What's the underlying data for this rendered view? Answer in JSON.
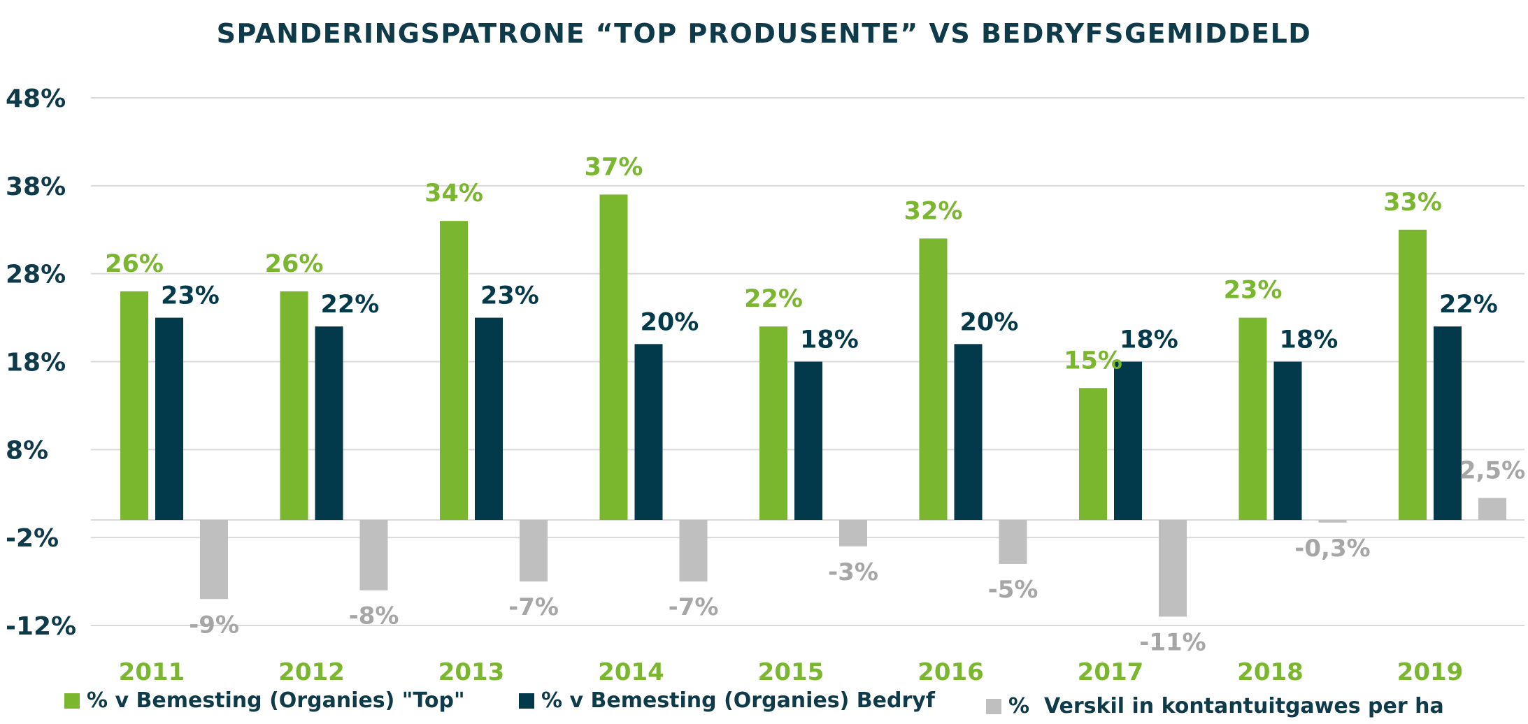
{
  "title": "SPANDERINGSPATRONE “TOP PRODUSENTE” VS BEDRYFSGEMIDDELD",
  "colors": {
    "top": "#7ab62e",
    "bedryf": "#033a4b",
    "verskil": "#bfbfbf",
    "axis_text": "#0e3a4a",
    "grid": "#d9d9d9"
  },
  "chart_data": {
    "type": "bar",
    "title": "SPANDERINGSPATRONE “TOP PRODUSENTE” VS BEDRYFSGEMIDDELD",
    "categories": [
      "2011",
      "2012",
      "2013",
      "2014",
      "2015",
      "2016",
      "2017",
      "2018",
      "2019"
    ],
    "series": [
      {
        "name": "% v Bemesting (Organies) \"Top\"",
        "values": [
          26,
          26,
          34,
          37,
          22,
          32,
          15,
          23,
          33
        ],
        "labels": [
          "26%",
          "26%",
          "34%",
          "37%",
          "22%",
          "32%",
          "15%",
          "23%",
          "33%"
        ]
      },
      {
        "name": "% v Bemesting (Organies) Bedryf",
        "values": [
          23,
          22,
          23,
          20,
          18,
          20,
          18,
          18,
          22
        ],
        "labels": [
          "23%",
          "22%",
          "23%",
          "20%",
          "18%",
          "20%",
          "18%",
          "18%",
          "22%"
        ]
      },
      {
        "name": "%  Verskil in kontantuitgawes per ha",
        "values": [
          -9,
          -8,
          -7,
          -7,
          -3,
          -5,
          -11,
          -0.3,
          2.5
        ],
        "labels": [
          "-9%",
          "-8%",
          "-7%",
          "-7%",
          "-3%",
          "-5%",
          "-11%",
          "-0,3%",
          "2,5%"
        ]
      }
    ],
    "ylim": [
      -12,
      48
    ],
    "yticks": [
      48,
      38,
      28,
      18,
      8,
      -2,
      -12
    ],
    "ytick_labels": [
      "48%",
      "38%",
      "28%",
      "18%",
      "8%",
      "-2%",
      "-12%"
    ],
    "xlabel": "",
    "ylabel": "",
    "grid": true,
    "legend_position": "bottom"
  },
  "legend": [
    {
      "label": "% v Bemesting (Organies) \"Top\"",
      "color": "#7ab62e"
    },
    {
      "label": "% v Bemesting (Organies) Bedryf",
      "color": "#033a4b"
    },
    {
      "label": "%  Verskil in kontantuitgawes per ha",
      "color": "#bfbfbf"
    }
  ]
}
